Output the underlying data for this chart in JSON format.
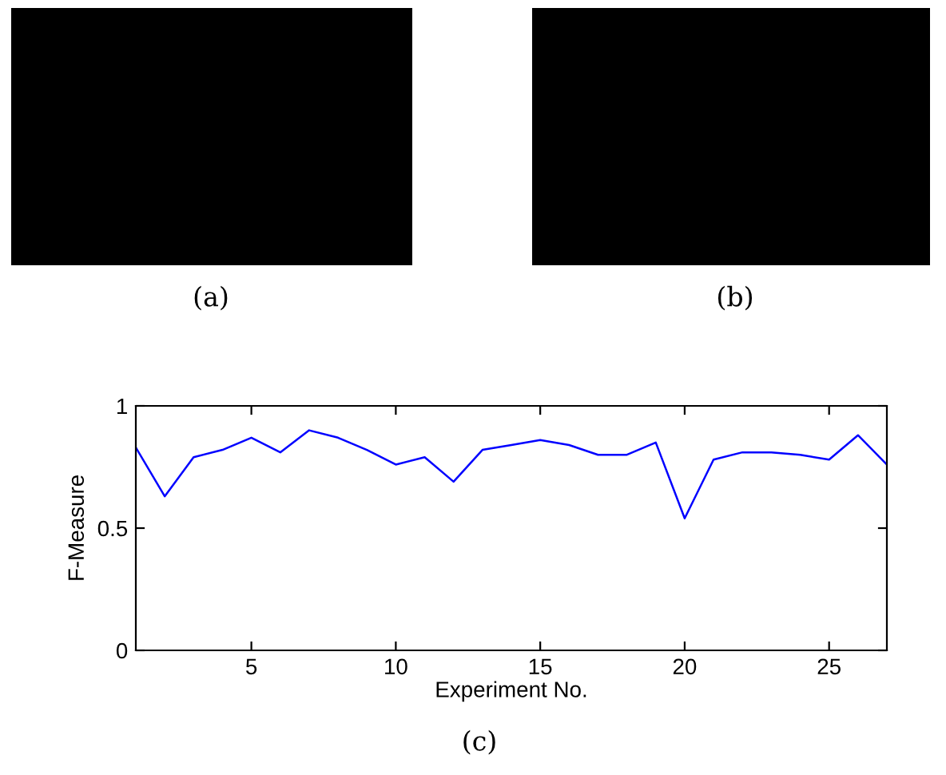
{
  "chart_data": {
    "type": "line",
    "xlabel": "Experiment No.",
    "ylabel": "F-Measure",
    "annotations": [
      "(a)",
      "(b)",
      "(c)"
    ],
    "x": [
      1,
      2,
      3,
      4,
      5,
      6,
      7,
      8,
      9,
      10,
      11,
      12,
      13,
      14,
      15,
      16,
      17,
      18,
      19,
      20,
      21,
      22,
      23,
      24,
      25,
      26,
      27
    ],
    "series": [
      {
        "color": "#0000ff",
        "values": [
          0.83,
          0.63,
          0.79,
          0.82,
          0.87,
          0.81,
          0.9,
          0.87,
          0.82,
          0.76,
          0.79,
          0.69,
          0.82,
          0.84,
          0.86,
          0.84,
          0.8,
          0.8,
          0.85,
          0.54,
          0.78,
          0.81,
          0.81,
          0.8,
          0.78,
          0.88,
          0.76
        ]
      }
    ],
    "xlim": [
      1,
      27
    ],
    "xticks": [
      5,
      10,
      15,
      20,
      25
    ],
    "ylim": [
      0,
      1
    ],
    "yticks": [
      0,
      0.5,
      1
    ],
    "grid": false,
    "legend": false,
    "marker": "none",
    "line_style": "solid"
  }
}
